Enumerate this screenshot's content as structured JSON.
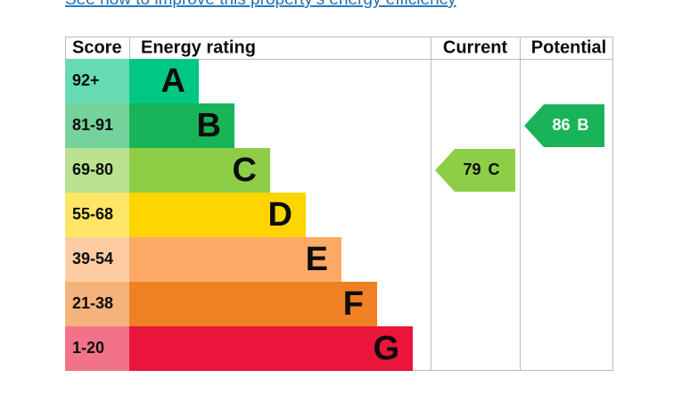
{
  "link": "See how to improve this property’s energy efficiency",
  "table": {
    "headers": [
      "Score",
      "Energy rating",
      "Current",
      "Potential"
    ],
    "rows": [
      {
        "score": "92+",
        "band": "A",
        "color": "#00c781",
        "light": "#66dbb3"
      },
      {
        "score": "81-91",
        "band": "B",
        "color": "#19b459",
        "light": "#75d29b"
      },
      {
        "score": "69-80",
        "band": "C",
        "color": "#8dce46",
        "light": "#bbe290"
      },
      {
        "score": "55-68",
        "band": "D",
        "color": "#ffd500",
        "light": "#ffe666"
      },
      {
        "score": "39-54",
        "band": "E",
        "color": "#fcaa65",
        "light": "#fdcca3"
      },
      {
        "score": "21-38",
        "band": "F",
        "color": "#ef8023",
        "light": "#f5b37b"
      },
      {
        "score": "1-20",
        "band": "G",
        "color": "#e9153b",
        "light": "#f27389"
      }
    ],
    "current": {
      "score": 79,
      "band": "C"
    },
    "potential": {
      "score": 86,
      "band": "B"
    }
  }
}
